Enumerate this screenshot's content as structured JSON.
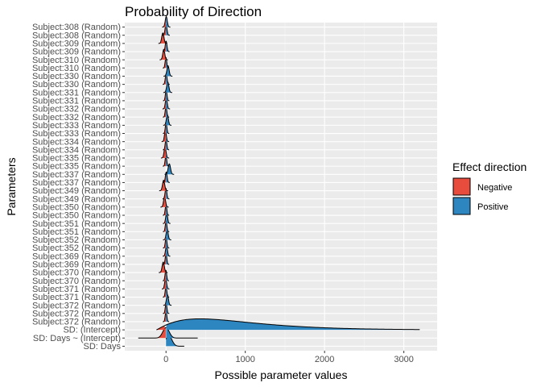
{
  "chart_data": {
    "type": "ridgeline",
    "title": "Probability of Direction",
    "xlabel": "Possible parameter values",
    "ylabel": "Parameters",
    "xlim": [
      -520,
      3420
    ],
    "xticks": [
      0,
      1000,
      2000,
      3000
    ],
    "grid": true,
    "legend": {
      "title": "Effect direction",
      "position": "right",
      "entries": [
        {
          "label": "Negative",
          "color": "#E74C3C"
        },
        {
          "label": "Positive",
          "color": "#2E86C1"
        }
      ]
    },
    "parameters": [
      {
        "label": "Subject:308 (Random)",
        "mean": 3,
        "sd": 13
      },
      {
        "label": "Subject:308 (Random)",
        "mean": 0,
        "sd": 12
      },
      {
        "label": "Subject:309 (Random)",
        "mean": -40,
        "sd": 14
      },
      {
        "label": "Subject:309 (Random)",
        "mean": 1,
        "sd": 11
      },
      {
        "label": "Subject:310 (Random)",
        "mean": -28,
        "sd": 13
      },
      {
        "label": "Subject:310 (Random)",
        "mean": -1,
        "sd": 10
      },
      {
        "label": "Subject:330 (Random)",
        "mean": 25,
        "sd": 14
      },
      {
        "label": "Subject:330 (Random)",
        "mean": 2,
        "sd": 11
      },
      {
        "label": "Subject:331 (Random)",
        "mean": 22,
        "sd": 14
      },
      {
        "label": "Subject:331 (Random)",
        "mean": 2,
        "sd": 10
      },
      {
        "label": "Subject:332 (Random)",
        "mean": 3,
        "sd": 12
      },
      {
        "label": "Subject:332 (Random)",
        "mean": 0,
        "sd": 10
      },
      {
        "label": "Subject:333 (Random)",
        "mean": 17,
        "sd": 13
      },
      {
        "label": "Subject:333 (Random)",
        "mean": 1,
        "sd": 10
      },
      {
        "label": "Subject:334 (Random)",
        "mean": -8,
        "sd": 12
      },
      {
        "label": "Subject:334 (Random)",
        "mean": 0,
        "sd": 10
      },
      {
        "label": "Subject:335 (Random)",
        "mean": -12,
        "sd": 13
      },
      {
        "label": "Subject:335 (Random)",
        "mean": -1,
        "sd": 10
      },
      {
        "label": "Subject:337 (Random)",
        "mean": 42,
        "sd": 15
      },
      {
        "label": "Subject:337 (Random)",
        "mean": 3,
        "sd": 11
      },
      {
        "label": "Subject:349 (Random)",
        "mean": -30,
        "sd": 14
      },
      {
        "label": "Subject:349 (Random)",
        "mean": -1,
        "sd": 11
      },
      {
        "label": "Subject:350 (Random)",
        "mean": -18,
        "sd": 13
      },
      {
        "label": "Subject:350 (Random)",
        "mean": 0,
        "sd": 10
      },
      {
        "label": "Subject:351 (Random)",
        "mean": 8,
        "sd": 12
      },
      {
        "label": "Subject:351 (Random)",
        "mean": 1,
        "sd": 10
      },
      {
        "label": "Subject:352 (Random)",
        "mean": 14,
        "sd": 13
      },
      {
        "label": "Subject:352 (Random)",
        "mean": 1,
        "sd": 10
      },
      {
        "label": "Subject:369 (Random)",
        "mean": 6,
        "sd": 12
      },
      {
        "label": "Subject:369 (Random)",
        "mean": 0,
        "sd": 10
      },
      {
        "label": "Subject:370 (Random)",
        "mean": -35,
        "sd": 14
      },
      {
        "label": "Subject:370 (Random)",
        "mean": -2,
        "sd": 10
      },
      {
        "label": "Subject:371 (Random)",
        "mean": -5,
        "sd": 12
      },
      {
        "label": "Subject:371 (Random)",
        "mean": 0,
        "sd": 10
      },
      {
        "label": "Subject:372 (Random)",
        "mean": 18,
        "sd": 13
      },
      {
        "label": "Subject:372 (Random)",
        "mean": 1,
        "sd": 10
      },
      {
        "label": "Subject:372 (Random)",
        "mean": 0,
        "sd": 10
      },
      {
        "label": "SD:  (Intercept)",
        "mean": 430,
        "sd": 320,
        "skewed": true,
        "min": -120,
        "max": 3200
      },
      {
        "label": "SD:  Days ~ (Intercept)",
        "mean": 0,
        "sd": 40,
        "min": -350,
        "max": 400
      },
      {
        "label": "SD:  Days",
        "mean": 35,
        "sd": 40,
        "min": 0,
        "max": 230
      }
    ]
  }
}
